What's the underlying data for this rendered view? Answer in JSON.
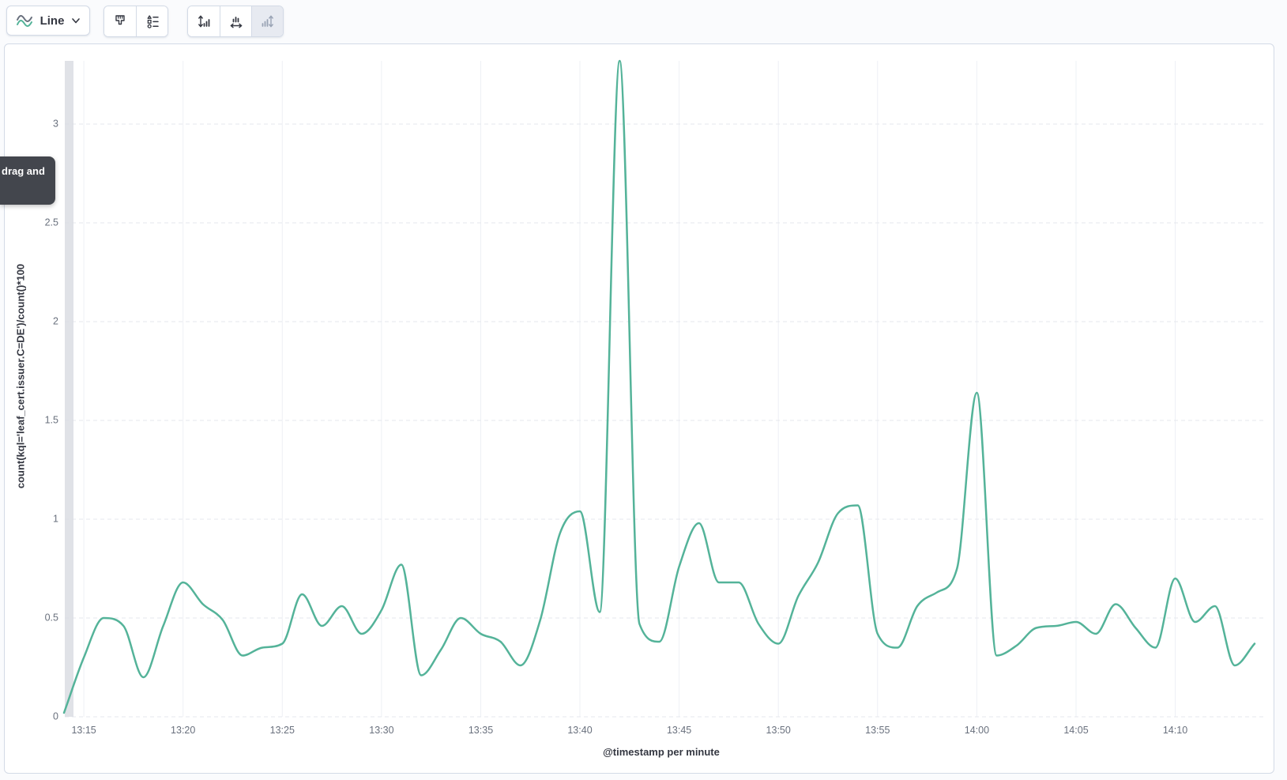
{
  "toolbar": {
    "chart_type": {
      "label": "Line",
      "icon": "line-chart-icon",
      "chevron_icon": "chevron-down-icon"
    },
    "style_buttons": [
      {
        "icon": "paintbrush-icon"
      },
      {
        "icon": "legend-values-icon"
      }
    ],
    "axis_buttons": [
      {
        "icon": "left-axis-icon",
        "disabled": false
      },
      {
        "icon": "bottom-axis-icon",
        "disabled": false
      },
      {
        "icon": "right-axis-icon",
        "disabled": true
      }
    ]
  },
  "tooltip": {
    "visible_text": "drag and"
  },
  "chart_data": {
    "type": "line",
    "title": "",
    "xlabel": "@timestamp per minute",
    "ylabel": "count(kql='leaf_cert.issuer.C=DE')/count()*100",
    "series_color": "#54b399",
    "grid": true,
    "legend": false,
    "ylim": [
      0,
      3.35
    ],
    "y_ticks": [
      "0",
      "0.5",
      "1",
      "1.5",
      "2",
      "2.5",
      "3"
    ],
    "x_ticks": [
      "13:15",
      "13:20",
      "13:25",
      "13:30",
      "13:35",
      "13:40",
      "13:45",
      "13:50",
      "13:55",
      "14:00",
      "14:05",
      "14:10"
    ],
    "x": [
      "13:14",
      "13:15",
      "13:16",
      "13:17",
      "13:18",
      "13:19",
      "13:20",
      "13:21",
      "13:22",
      "13:23",
      "13:24",
      "13:25",
      "13:26",
      "13:27",
      "13:28",
      "13:29",
      "13:30",
      "13:31",
      "13:32",
      "13:33",
      "13:34",
      "13:35",
      "13:36",
      "13:37",
      "13:38",
      "13:39",
      "13:40",
      "13:41",
      "13:42",
      "13:43",
      "13:44",
      "13:45",
      "13:46",
      "13:47",
      "13:48",
      "13:49",
      "13:50",
      "13:51",
      "13:52",
      "13:53",
      "13:54",
      "13:55",
      "13:56",
      "13:57",
      "13:58",
      "13:59",
      "14:00",
      "14:01",
      "14:02",
      "14:03",
      "14:04",
      "14:05",
      "14:06",
      "14:07",
      "14:08",
      "14:09",
      "14:10",
      "14:11",
      "14:12",
      "14:13",
      "14:14"
    ],
    "values": [
      0.02,
      0.3,
      0.5,
      0.46,
      0.2,
      0.46,
      0.68,
      0.57,
      0.49,
      0.31,
      0.35,
      0.37,
      0.62,
      0.46,
      0.56,
      0.42,
      0.54,
      0.77,
      0.21,
      0.34,
      0.5,
      0.42,
      0.38,
      0.26,
      0.49,
      0.93,
      1.04,
      0.53,
      3.32,
      0.47,
      0.38,
      0.76,
      0.98,
      0.68,
      0.68,
      0.47,
      0.37,
      0.61,
      0.78,
      1.03,
      1.07,
      0.42,
      0.35,
      0.56,
      0.63,
      0.75,
      1.64,
      0.31,
      0.36,
      0.45,
      0.46,
      0.48,
      0.42,
      0.57,
      0.45,
      0.35,
      0.7,
      0.48,
      0.56,
      0.26,
      0.37
    ]
  }
}
